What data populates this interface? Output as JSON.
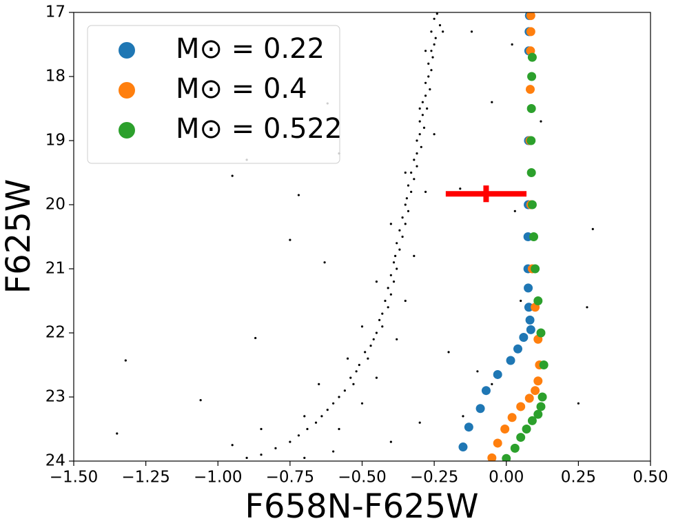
{
  "chart_data": {
    "type": "scatter",
    "xlabel": "F658N-F625W",
    "ylabel": "F625W",
    "xlim": [
      -1.5,
      0.5
    ],
    "ylim": [
      24,
      17
    ],
    "y_inverted": true,
    "xticks": [
      {
        "value": -1.5,
        "label": "−1.50"
      },
      {
        "value": -1.25,
        "label": "−1.25"
      },
      {
        "value": -1.0,
        "label": "−1.00"
      },
      {
        "value": -0.75,
        "label": "−0.75"
      },
      {
        "value": -0.5,
        "label": "−0.50"
      },
      {
        "value": -0.25,
        "label": "−0.25"
      },
      {
        "value": 0,
        "label": "0.00"
      },
      {
        "value": 0.25,
        "label": "0.25"
      },
      {
        "value": 0.5,
        "label": "0.50"
      }
    ],
    "yticks": [
      17,
      18,
      19,
      20,
      21,
      22,
      23,
      24
    ],
    "legend": "upper left",
    "series": [
      {
        "color": "#000000",
        "x": [
          -0.24,
          -0.25,
          -0.23,
          -0.26,
          -0.245,
          -0.25,
          -0.26,
          -0.255,
          -0.27,
          -0.26,
          -0.27,
          -0.28,
          -0.265,
          -0.28,
          -0.29,
          -0.275,
          -0.29,
          -0.3,
          -0.285,
          -0.3,
          -0.31,
          -0.295,
          -0.31,
          -0.32,
          -0.31,
          -0.33,
          -0.32,
          -0.34,
          -0.33,
          -0.345,
          -0.35,
          -0.34,
          -0.36,
          -0.35,
          -0.37,
          -0.36,
          -0.38,
          -0.37,
          -0.385,
          -0.39,
          -0.38,
          -0.4,
          -0.39,
          -0.41,
          -0.4,
          -0.42,
          -0.41,
          -0.43,
          -0.44,
          -0.43,
          -0.45,
          -0.46,
          -0.47,
          -0.49,
          -0.48,
          -0.51,
          -0.52,
          -0.54,
          -0.53,
          -0.56,
          -0.58,
          -0.6,
          -0.62,
          -0.64,
          -0.66,
          -0.69,
          -0.72,
          -0.75,
          -0.8,
          -0.85,
          -0.9,
          -0.22,
          -0.28,
          -0.3,
          -0.25,
          -0.35,
          -0.28,
          -0.4,
          -0.32,
          -0.45,
          -0.35,
          -0.5,
          -0.38,
          -0.55,
          -0.45,
          -0.65,
          -0.5,
          -0.7,
          -0.58,
          -0.85,
          -0.95,
          -0.6,
          -0.7,
          -0.4,
          -0.3,
          -0.12,
          -0.05,
          0.02,
          -0.62,
          -0.58,
          -0.95,
          -0.9,
          -0.72,
          -1.32,
          -1.35,
          -0.87,
          -1.06,
          0.3,
          0.28,
          0.25,
          0.12,
          -0.16,
          -0.63,
          -0.2,
          -0.1,
          -0.05,
          -0.15,
          0.03,
          0.05,
          -0.75
        ],
        "values": [
          17.02,
          17.1,
          17.2,
          17.3,
          17.4,
          17.5,
          17.6,
          17.7,
          17.8,
          17.9,
          18.0,
          18.1,
          18.2,
          18.3,
          18.4,
          18.5,
          18.6,
          18.7,
          18.8,
          18.9,
          19.0,
          19.1,
          19.2,
          19.3,
          19.4,
          19.5,
          19.6,
          19.7,
          19.8,
          19.9,
          20.0,
          20.1,
          20.2,
          20.3,
          20.4,
          20.5,
          20.6,
          20.7,
          20.8,
          20.9,
          21.0,
          21.1,
          21.2,
          21.3,
          21.4,
          21.5,
          21.6,
          21.7,
          21.8,
          21.9,
          22.0,
          22.1,
          22.2,
          22.3,
          22.4,
          22.5,
          22.6,
          22.7,
          22.8,
          22.9,
          23.0,
          23.1,
          23.2,
          23.3,
          23.4,
          23.5,
          23.6,
          23.7,
          23.8,
          23.9,
          23.95,
          17.3,
          17.6,
          18.5,
          18.9,
          19.5,
          19.8,
          20.3,
          20.8,
          21.2,
          21.5,
          21.9,
          22.1,
          22.4,
          22.7,
          22.8,
          23.1,
          23.3,
          23.5,
          23.5,
          23.75,
          23.85,
          23.95,
          23.7,
          23.4,
          17.3,
          18.4,
          17.5,
          18.42,
          19.2,
          19.55,
          19.3,
          19.85,
          22.43,
          23.57,
          22.08,
          23.05,
          20.38,
          21.6,
          23.1,
          18.7,
          19.75,
          20.9,
          22.3,
          22.6,
          22.8,
          23.3,
          20.1,
          21.5,
          20.55
        ]
      },
      {
        "name": "M⊙ = 0.22",
        "color": "#1f77b4",
        "x": [
          0.08,
          0.079,
          0.078,
          0.077,
          0.076,
          0.075,
          0.075,
          0.076,
          0.078,
          0.082,
          0.085,
          0.06,
          0.04,
          0.015,
          -0.03,
          -0.07,
          -0.09,
          -0.13,
          -0.15
        ],
        "values": [
          17.05,
          17.3,
          17.6,
          19.0,
          20.0,
          20.5,
          21.0,
          21.3,
          21.6,
          21.8,
          21.95,
          22.07,
          22.25,
          22.43,
          22.65,
          22.9,
          23.18,
          23.47,
          23.78
        ]
      },
      {
        "name": "M⊙ = 0.4",
        "color": "#ff7f0e",
        "x": [
          0.085,
          0.085,
          0.084,
          0.083,
          0.082,
          0.085,
          0.09,
          0.1,
          0.11,
          0.115,
          0.11,
          0.1,
          0.08,
          0.05,
          0.02,
          -0.005,
          -0.03,
          -0.05
        ],
        "values": [
          17.05,
          17.3,
          17.6,
          18.2,
          19.0,
          20.0,
          21.0,
          21.6,
          22.1,
          22.5,
          22.75,
          22.9,
          23.02,
          23.15,
          23.32,
          23.5,
          23.72,
          23.95
        ]
      },
      {
        "name": "M⊙ = 0.522",
        "color": "#2ca02c",
        "x": [
          0.09,
          0.088,
          0.087,
          0.086,
          0.087,
          0.09,
          0.095,
          0.1,
          0.11,
          0.12,
          0.13,
          0.125,
          0.12,
          0.11,
          0.09,
          0.07,
          0.05,
          0.03,
          0.0
        ],
        "values": [
          17.7,
          18.0,
          18.5,
          19.0,
          19.5,
          20.0,
          20.5,
          21.0,
          21.5,
          22.0,
          22.5,
          23.0,
          23.15,
          23.27,
          23.37,
          23.5,
          23.63,
          23.8,
          23.96
        ]
      }
    ],
    "errorbar": {
      "x": -0.07,
      "y": 19.83,
      "xerr": 0.14,
      "yerr": 0.13,
      "color": "#ff0000"
    }
  }
}
